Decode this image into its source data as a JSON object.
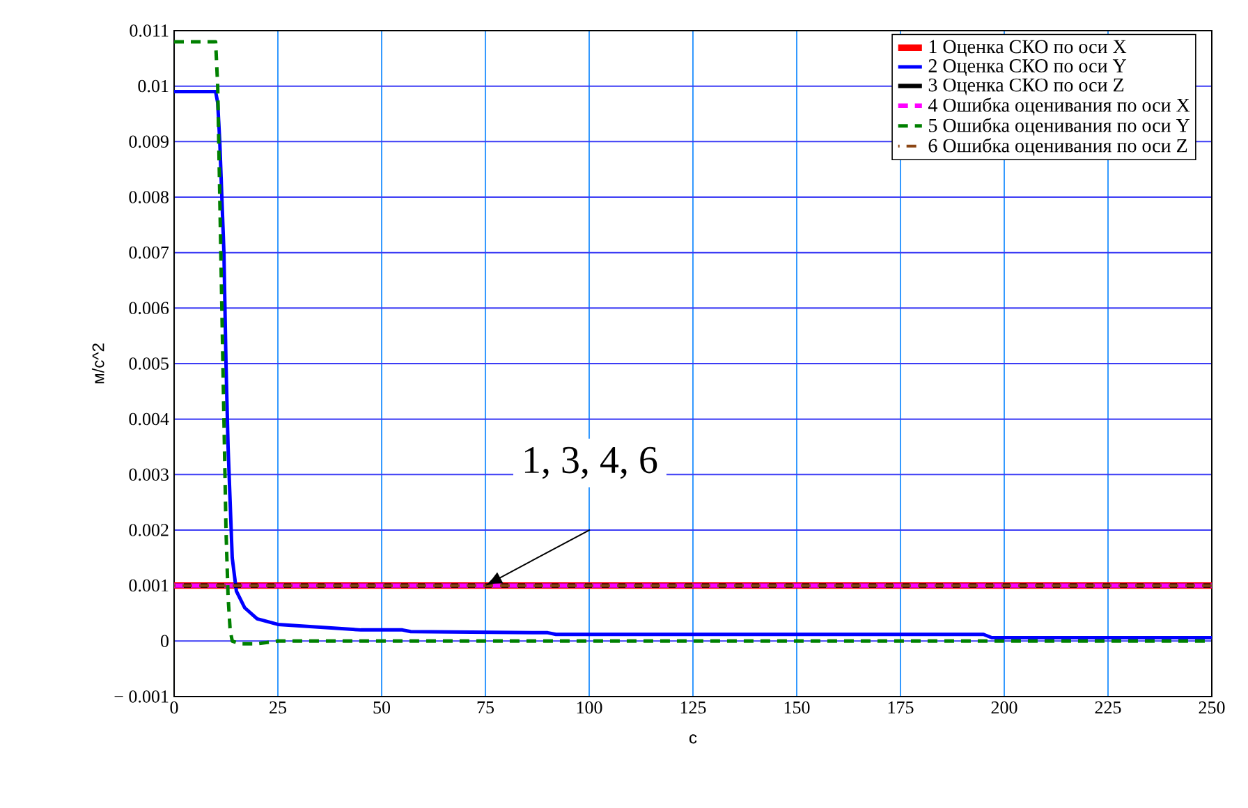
{
  "chart_data": {
    "type": "line",
    "xlabel": "c",
    "ylabel": "м/с^2",
    "xlim": [
      0,
      250
    ],
    "ylim": [
      -0.001,
      0.011
    ],
    "xticks": [
      0,
      25,
      50,
      75,
      100,
      125,
      150,
      175,
      200,
      225,
      250
    ],
    "yticks": [
      {
        "value": -0.001,
        "label": "− 0.001"
      },
      0,
      0.001,
      0.002,
      0.003,
      0.004,
      0.005,
      0.006,
      0.007,
      0.008,
      0.009,
      0.01,
      0.011
    ],
    "grid": true,
    "legend": "top right",
    "annotations": [
      {
        "text": "1, 3, 4, 6",
        "x": 75,
        "y": 0.001
      }
    ],
    "series": [
      {
        "name": "1 Оценка СКО по оси X",
        "color": "#ff0000",
        "line_style": "solid",
        "x": [
          0,
          250
        ],
        "values": [
          0.001,
          0.001
        ]
      },
      {
        "name": "2 Оценка СКО по оси Y",
        "color": "#0000ff",
        "line_style": "solid",
        "x": [
          0,
          10,
          10.5,
          11,
          12,
          12.5,
          13,
          13.5,
          14,
          15,
          17,
          20,
          25,
          35,
          45,
          55,
          57,
          90,
          92,
          195,
          197,
          250
        ],
        "values": [
          0.0099,
          0.0099,
          0.0097,
          0.009,
          0.007,
          0.005,
          0.0035,
          0.0025,
          0.0015,
          0.0009,
          0.0006,
          0.0004,
          0.0003,
          0.00025,
          0.0002,
          0.0002,
          0.00017,
          0.00015,
          0.00012,
          0.00012,
          6e-05,
          6e-05
        ]
      },
      {
        "name": "3 Оценка СКО по оси Z",
        "color": "#000000",
        "line_style": "solid",
        "x": [
          0,
          250
        ],
        "values": [
          0.001,
          0.001
        ]
      },
      {
        "name": "4 Ошибка оценивания по оси X",
        "color": "#ff00ff",
        "line_style": "dashed",
        "x": [
          0,
          250
        ],
        "values": [
          0.001,
          0.001
        ]
      },
      {
        "name": "5 Ошибка оценивания по оси Y",
        "color": "#008000",
        "line_style": "dashed",
        "x": [
          0,
          10,
          10.5,
          11,
          12,
          12.5,
          13,
          13.5,
          14,
          16,
          20,
          25,
          250
        ],
        "values": [
          0.0108,
          0.0108,
          0.01,
          0.008,
          0.004,
          0.002,
          0.0008,
          0.0002,
          0,
          -5e-05,
          -5e-05,
          0,
          0
        ]
      },
      {
        "name": "6 Ошибка оценивания по оси Z",
        "color": "#8b4513",
        "line_style": "dashed",
        "x": [
          0,
          250
        ],
        "values": [
          0.001,
          0.001
        ]
      }
    ]
  }
}
